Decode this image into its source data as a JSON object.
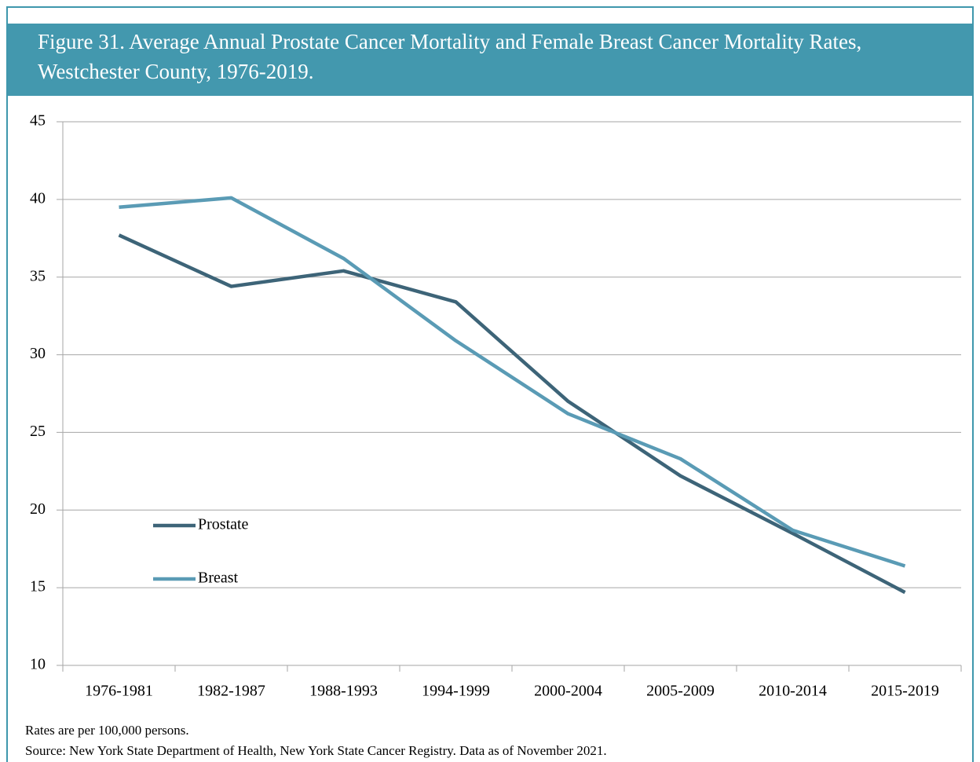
{
  "chart_data": {
    "type": "line",
    "title_lines": [
      "Figure 31. Average Annual Prostate Cancer Mortality and Female Breast Cancer Mortality Rates,",
      "Westchester County, 1976-2019."
    ],
    "categories": [
      "1976-1981",
      "1982-1987",
      "1988-1993",
      "1994-1999",
      "2000-2004",
      "2005-2009",
      "2010-2014",
      "2015-2019"
    ],
    "series": [
      {
        "name": "Prostate",
        "color": "#3d6478",
        "values": [
          37.7,
          34.4,
          35.4,
          33.4,
          27.0,
          22.2,
          18.5,
          14.7
        ]
      },
      {
        "name": "Breast",
        "color": "#5a9bb5",
        "values": [
          39.5,
          40.1,
          36.2,
          30.9,
          26.2,
          23.3,
          18.7,
          16.4
        ]
      }
    ],
    "ylim": [
      10,
      45
    ],
    "yticks": [
      10,
      15,
      20,
      25,
      30,
      35,
      40,
      45
    ],
    "grid": true,
    "notes": [
      "Rates are per 100,000 persons.",
      "Source: New York State Department of Health, New York State Cancer Registry. Data as of November 2021."
    ]
  }
}
